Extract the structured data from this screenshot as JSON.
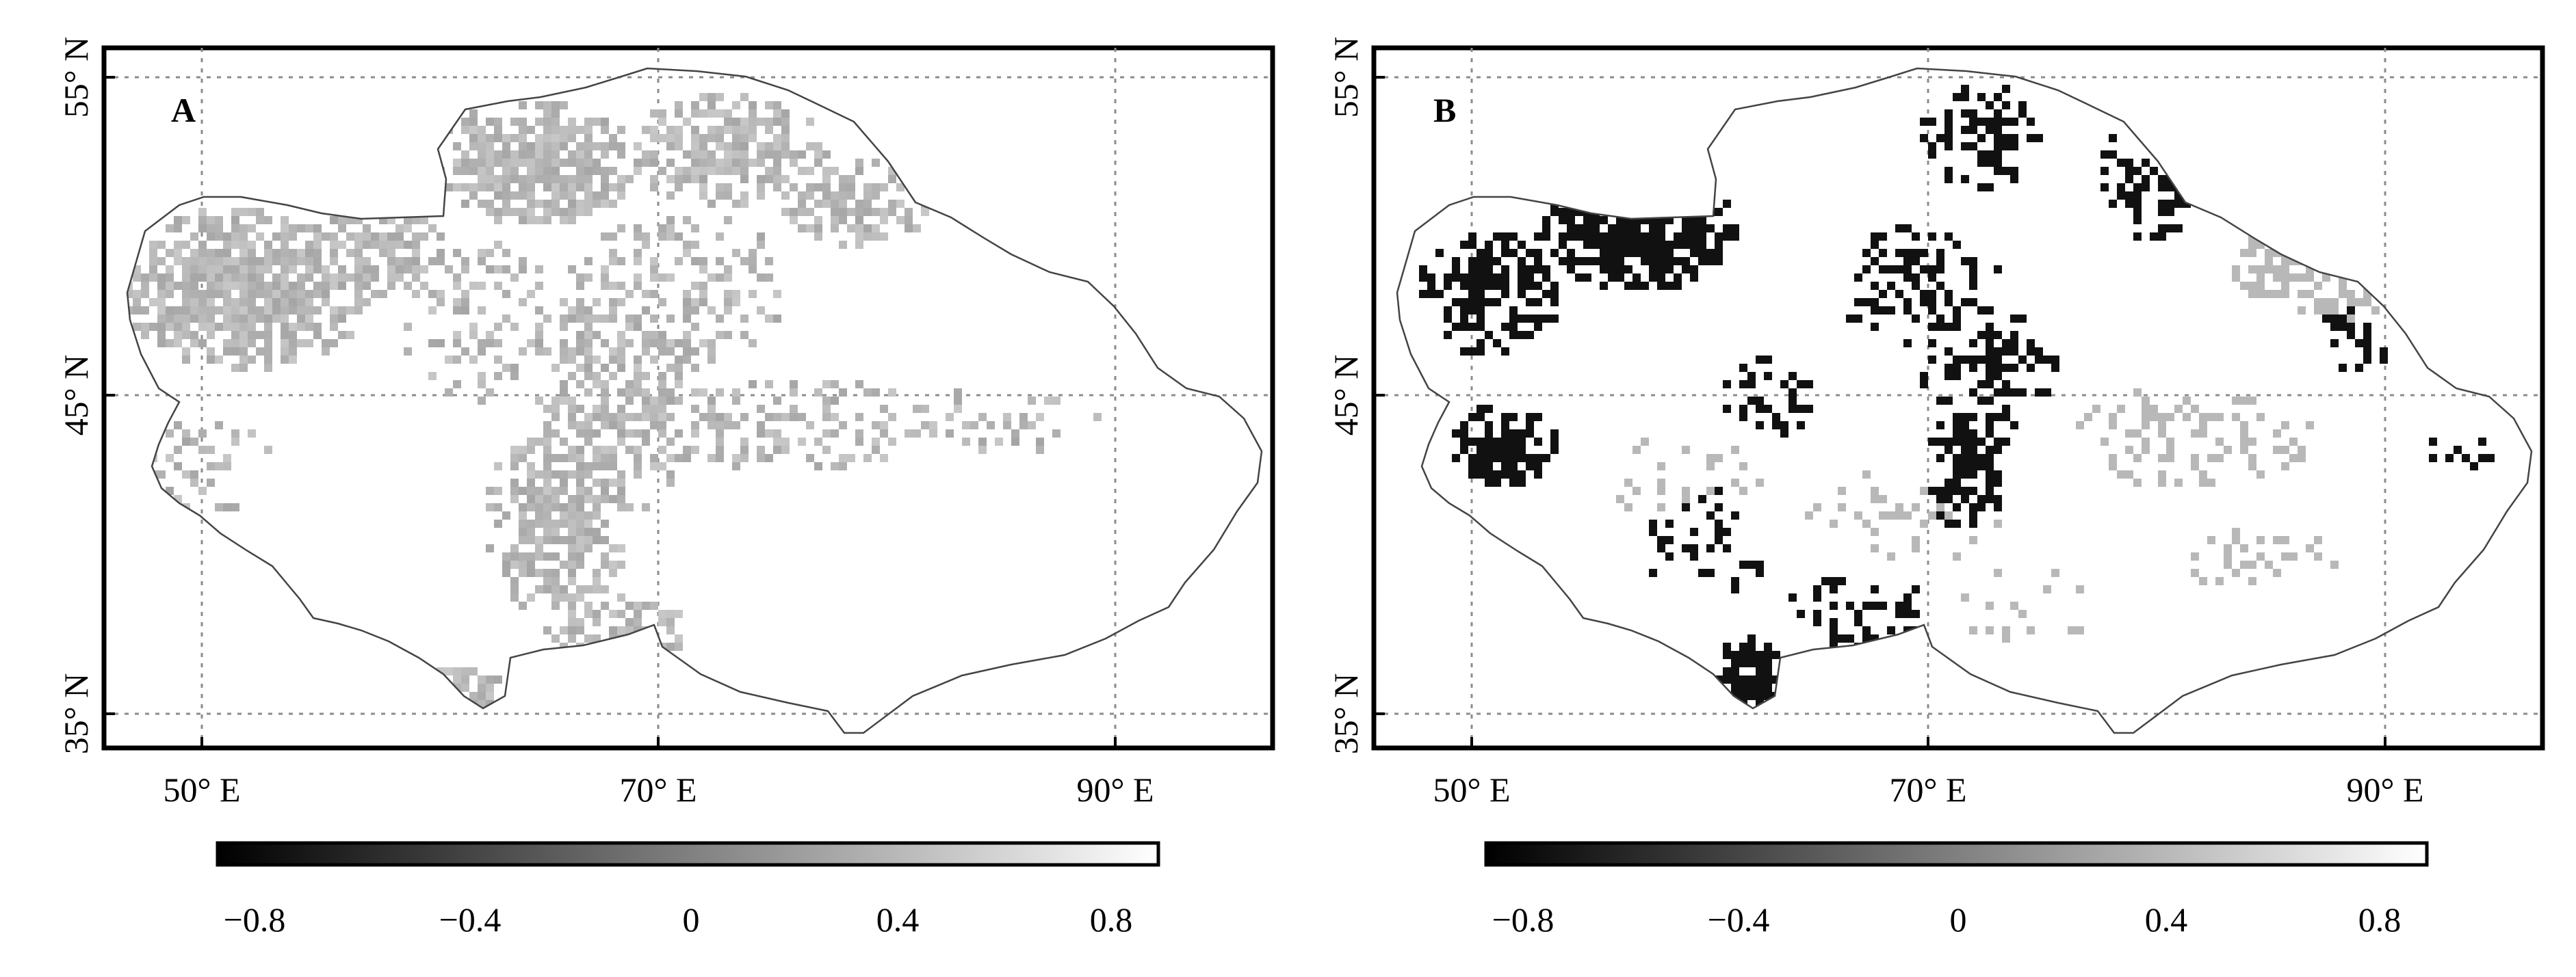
{
  "panels": [
    {
      "id": "A",
      "label": "A",
      "lat_ticks": [
        {
          "value": 55,
          "label": "55° N"
        },
        {
          "value": 45,
          "label": "45° N"
        },
        {
          "value": 35,
          "label": "35° N"
        }
      ],
      "lon_ticks": [
        {
          "value": 50,
          "label": "50° E"
        },
        {
          "value": 70,
          "label": "70° E"
        },
        {
          "value": 90,
          "label": "90° E"
        }
      ],
      "colorbar": {
        "ticks": [
          {
            "value": -0.8,
            "label": "−0.8"
          },
          {
            "value": -0.4,
            "label": "−0.4"
          },
          {
            "value": 0,
            "label": "0"
          },
          {
            "value": 0.4,
            "label": "0.4"
          },
          {
            "value": 0.8,
            "label": "0.8"
          }
        ]
      }
    },
    {
      "id": "B",
      "label": "B",
      "lat_ticks": [
        {
          "value": 55,
          "label": "55° N"
        },
        {
          "value": 45,
          "label": "45° N"
        },
        {
          "value": 35,
          "label": "35° N"
        }
      ],
      "lon_ticks": [
        {
          "value": 50,
          "label": "50° E"
        },
        {
          "value": 70,
          "label": "70° E"
        },
        {
          "value": 90,
          "label": "90° E"
        }
      ],
      "colorbar": {
        "ticks": [
          {
            "value": -0.8,
            "label": "−0.8"
          },
          {
            "value": -0.4,
            "label": "−0.4"
          },
          {
            "value": 0,
            "label": "0"
          },
          {
            "value": 0.4,
            "label": "0.4"
          },
          {
            "value": 0.8,
            "label": "0.8"
          }
        ]
      }
    }
  ],
  "colors": {
    "frame": "#000000",
    "gridline": "#8c8c8c",
    "region_outline": "#444444",
    "panel_a_cells": "#b2b2b2",
    "panel_b_negative_cells": "#111111",
    "panel_b_positive_cells": "#b8b8b8"
  }
}
